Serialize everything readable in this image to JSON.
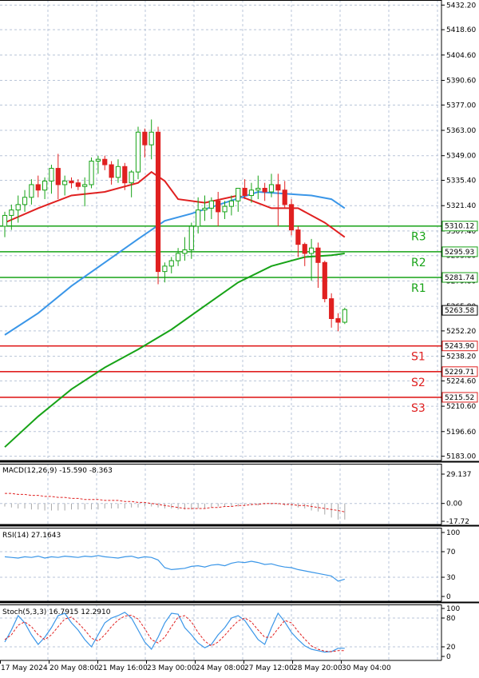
{
  "chart_data": [
    {
      "panel": "price",
      "type": "candlestick",
      "ylim": [
        5180.6,
        5435.0
      ],
      "y_ticks": [
        "5432.20",
        "5418.60",
        "5404.60",
        "5390.60",
        "5377.00",
        "5363.00",
        "5349.00",
        "5335.40",
        "5321.40",
        "5307.40",
        "5293.80",
        "5279.80",
        "5265.80",
        "5252.20",
        "5238.20",
        "5224.60",
        "5210.60",
        "5196.60",
        "5183.00"
      ],
      "x_ticks": [
        "17 May 2024",
        "20 May 08:00",
        "21 May 16:00",
        "23 May 00:00",
        "24 May 08:00",
        "27 May 12:00",
        "28 May 20:00",
        "30 May 04:00"
      ],
      "candles": [
        [
          5310,
          5318,
          5304,
          5316
        ],
        [
          5316,
          5322,
          5308,
          5319
        ],
        [
          5319,
          5327,
          5312,
          5322
        ],
        [
          5322,
          5330,
          5318,
          5326
        ],
        [
          5326,
          5336,
          5322,
          5333
        ],
        [
          5333,
          5338,
          5326,
          5330
        ],
        [
          5330,
          5337,
          5325,
          5335
        ],
        [
          5335,
          5344,
          5328,
          5342
        ],
        [
          5342,
          5350,
          5325,
          5333
        ],
        [
          5333,
          5338,
          5327,
          5335
        ],
        [
          5335,
          5337,
          5331,
          5334
        ],
        [
          5334,
          5336,
          5330,
          5332
        ],
        [
          5332,
          5337,
          5321,
          5333
        ],
        [
          5333,
          5348,
          5331,
          5346
        ],
        [
          5346,
          5349,
          5339,
          5347
        ],
        [
          5347,
          5349,
          5341,
          5344
        ],
        [
          5344,
          5346,
          5333,
          5337
        ],
        [
          5337,
          5347,
          5334,
          5343
        ],
        [
          5343,
          5345,
          5330,
          5334
        ],
        [
          5334,
          5341,
          5326,
          5340
        ],
        [
          5340,
          5365,
          5336,
          5362
        ],
        [
          5362,
          5364,
          5348,
          5355
        ],
        [
          5355,
          5369,
          5347,
          5362
        ],
        [
          5362,
          5365,
          5278,
          5285
        ],
        [
          5285,
          5290,
          5279,
          5288
        ],
        [
          5288,
          5293,
          5284,
          5291
        ],
        [
          5291,
          5298,
          5288,
          5295
        ],
        [
          5295,
          5304,
          5291,
          5297
        ],
        [
          5297,
          5312,
          5292,
          5310
        ],
        [
          5310,
          5326,
          5306,
          5319
        ],
        [
          5319,
          5327,
          5313,
          5320
        ],
        [
          5320,
          5326,
          5314,
          5324
        ],
        [
          5324,
          5329,
          5310,
          5318
        ],
        [
          5318,
          5324,
          5314,
          5321
        ],
        [
          5321,
          5327,
          5316,
          5324
        ],
        [
          5324,
          5331,
          5318,
          5331
        ],
        [
          5331,
          5336,
          5325,
          5327
        ],
        [
          5327,
          5334,
          5323,
          5330
        ],
        [
          5330,
          5338,
          5325,
          5331
        ],
        [
          5331,
          5334,
          5324,
          5329
        ],
        [
          5329,
          5339,
          5326,
          5333
        ],
        [
          5333,
          5339,
          5310,
          5330
        ],
        [
          5330,
          5335,
          5320,
          5322
        ],
        [
          5322,
          5325,
          5305,
          5308
        ],
        [
          5308,
          5310,
          5293,
          5300
        ],
        [
          5300,
          5301,
          5288,
          5295
        ],
        [
          5295,
          5303,
          5280,
          5298
        ],
        [
          5298,
          5301,
          5276,
          5290
        ],
        [
          5290,
          5291,
          5268,
          5270
        ],
        [
          5270,
          5273,
          5254,
          5259
        ],
        [
          5259,
          5262,
          5252,
          5257
        ],
        [
          5257,
          5265,
          5256,
          5264
        ]
      ],
      "series": [
        {
          "name": "",
          "color": "#e02020",
          "x": [
            0,
            5,
            10,
            15,
            20,
            22,
            24,
            26,
            30,
            35,
            40,
            44,
            48,
            51
          ],
          "values": [
            5312,
            5320,
            5327,
            5329,
            5334,
            5340,
            5335,
            5325,
            5323,
            5327,
            5320,
            5320,
            5312,
            5304
          ]
        },
        {
          "name": "",
          "color": "#3a96e8",
          "x": [
            0,
            5,
            10,
            15,
            20,
            24,
            28,
            33,
            38,
            42,
            46,
            49,
            51
          ],
          "values": [
            5250,
            5262,
            5277,
            5290,
            5303,
            5313,
            5317,
            5323,
            5329,
            5328,
            5327,
            5325,
            5320
          ]
        },
        {
          "name": "",
          "color": "#17a317",
          "x": [
            0,
            5,
            10,
            15,
            20,
            25,
            30,
            35,
            40,
            45,
            49,
            51
          ],
          "values": [
            5188,
            5205,
            5220,
            5232,
            5242,
            5253,
            5266,
            5279,
            5288,
            5293,
            5294,
            5295
          ]
        }
      ],
      "levels": [
        {
          "label": "R3",
          "value": 5310.12,
          "tag": "5310.12",
          "color": "#17a317"
        },
        {
          "label": "R2",
          "value": 5295.93,
          "tag": "5295.93",
          "color": "#17a317"
        },
        {
          "label": "R1",
          "value": 5281.74,
          "tag": "5281.74",
          "color": "#17a317"
        },
        {
          "label": "S1",
          "value": 5243.9,
          "tag": "5243.90",
          "color": "#e02020"
        },
        {
          "label": "S2",
          "value": 5229.71,
          "tag": "5229.71",
          "color": "#e02020"
        },
        {
          "label": "S3",
          "value": 5215.52,
          "tag": "5215.52",
          "color": "#e02020"
        }
      ],
      "current_price": {
        "value": 5263.58,
        "tag": "5263.58"
      }
    },
    {
      "panel": "macd",
      "title": "MACD(12,26,9) -15.590 -8.363",
      "y_ticks": [
        "29.137",
        "0.00",
        "-17.72"
      ],
      "ylim": [
        -17.72,
        29.137
      ],
      "histogram": [
        -3,
        -4,
        -5,
        -5,
        -6,
        -6,
        -7,
        -7,
        -7,
        -7,
        -6,
        -6,
        -6,
        -6,
        -6,
        -5,
        -5,
        -5,
        -5,
        -4,
        -4,
        -3,
        -3,
        -4,
        -5,
        -5,
        -6,
        -6,
        -6,
        -5,
        -5,
        -4,
        -3,
        -3,
        -3,
        -3,
        -2,
        -2,
        -2,
        -1,
        -1,
        -1,
        -2,
        -3,
        -4,
        -5,
        -7,
        -8,
        -11,
        -14,
        -16,
        -16
      ],
      "signal": [
        10,
        10,
        9,
        9,
        8,
        8,
        7,
        7,
        6,
        6,
        5,
        5,
        4,
        4,
        4,
        3,
        3,
        3,
        2,
        2,
        1,
        1,
        0,
        -1,
        -2,
        -3,
        -4,
        -5,
        -5,
        -5,
        -5,
        -4,
        -4,
        -3,
        -3,
        -2,
        -2,
        -1,
        -1,
        0,
        0,
        0,
        -1,
        -1,
        -2,
        -2,
        -3,
        -4,
        -5,
        -6,
        -7,
        -8.4
      ]
    },
    {
      "panel": "rsi",
      "title": "RSI(14) 27.1643",
      "y_ticks": [
        "100",
        "70",
        "30",
        "0"
      ],
      "ylim": [
        0,
        100
      ],
      "values": [
        62,
        61,
        60,
        62,
        61,
        63,
        60,
        62,
        61,
        63,
        62,
        61,
        63,
        62,
        64,
        62,
        61,
        60,
        62,
        63,
        60,
        62,
        61,
        57,
        45,
        42,
        43,
        44,
        47,
        48,
        46,
        49,
        50,
        48,
        52,
        54,
        53,
        55,
        53,
        50,
        51,
        48,
        46,
        45,
        42,
        40,
        38,
        36,
        34,
        32,
        24,
        27
      ]
    },
    {
      "panel": "stoch",
      "title": "Stoch(5,3,3) 16.7915 12.2910",
      "y_ticks": [
        "100",
        "80",
        "20",
        "0"
      ],
      "ylim": [
        0,
        100
      ],
      "k": [
        30,
        55,
        85,
        70,
        45,
        25,
        40,
        60,
        85,
        90,
        70,
        55,
        35,
        20,
        45,
        70,
        80,
        85,
        92,
        80,
        55,
        30,
        15,
        40,
        70,
        90,
        88,
        60,
        45,
        28,
        18,
        25,
        45,
        60,
        80,
        85,
        75,
        55,
        35,
        25,
        60,
        90,
        72,
        50,
        35,
        22,
        15,
        12,
        9,
        10,
        17,
        17
      ],
      "d": [
        35,
        45,
        65,
        72,
        62,
        45,
        35,
        45,
        62,
        78,
        82,
        70,
        55,
        38,
        32,
        45,
        62,
        76,
        84,
        86,
        78,
        58,
        35,
        28,
        40,
        62,
        82,
        85,
        72,
        50,
        32,
        22,
        30,
        44,
        60,
        74,
        80,
        72,
        55,
        40,
        40,
        58,
        75,
        70,
        52,
        36,
        22,
        15,
        11,
        10,
        12,
        12
      ]
    }
  ]
}
